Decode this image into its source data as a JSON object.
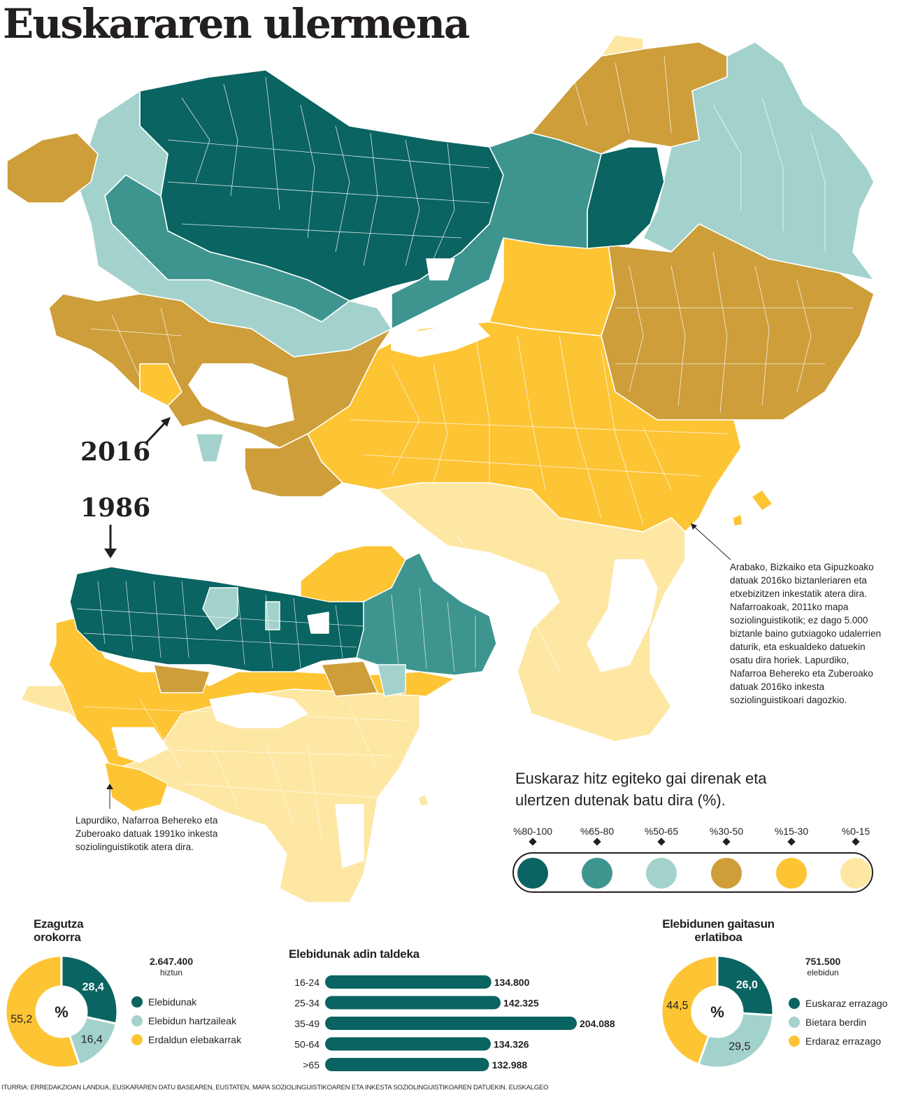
{
  "title": "Euskararen ulermena",
  "map_2016": {
    "year_label": "2016",
    "note": "Arabako, Bizkaiko eta Gipuzkoako datuak 2016ko biztanleriaren eta etxebizitzen inkestatik atera dira. Nafarroakoak, 2011ko mapa soziolinguistikotik; ez dago 5.000 biztanle baino gutxiagoko udalerrien daturik, eta eskualdeko datuekin osatu dira horiek. Lapurdiko, Nafarroa Behereko eta Zuberoako datuak 2016ko inkesta soziolinguistikoari dagozkio."
  },
  "map_1986": {
    "year_label": "1986",
    "note": "Lapurdiko, Nafarroa Behereko eta Zuberoako datuak 1991ko inkesta soziolinguistikotik atera dira."
  },
  "legend": {
    "intro": "Euskaraz hitz egiteko gai direnak eta ulertzen dutenak batu dira (%).",
    "classes": [
      {
        "label": "%80-100",
        "color": "#0a6461"
      },
      {
        "label": "%65-80",
        "color": "#3e958f"
      },
      {
        "label": "%50-65",
        "color": "#a3d2cc"
      },
      {
        "label": "%30-50",
        "color": "#cd9e3a"
      },
      {
        "label": "%15-30",
        "color": "#fdc434"
      },
      {
        "label": "%0-15",
        "color": "#fde7a2"
      }
    ]
  },
  "chart_data": [
    {
      "type": "pie",
      "title": "Ezagutza orokorra",
      "total_value": "2.647.400",
      "total_unit": "hiztun",
      "center_label": "%",
      "slices": [
        {
          "name": "Elebidunak",
          "value": 28.4,
          "label": "28,4",
          "color": "#0a6461"
        },
        {
          "name": "Elebidun hartzaileak",
          "value": 16.4,
          "label": "16,4",
          "color": "#a3d2cc"
        },
        {
          "name": "Erdaldun elebakarrak",
          "value": 55.2,
          "label": "55,2",
          "color": "#fdc434"
        }
      ]
    },
    {
      "type": "bar",
      "title": "Elebidunak adin taldeka",
      "categories": [
        "16-24",
        "25-34",
        "35-49",
        "50-64",
        ">65"
      ],
      "values": [
        134800,
        142325,
        204088,
        134326,
        132988
      ],
      "value_labels": [
        "134.800",
        "142.325",
        "204.088",
        "134.326",
        "132.988"
      ],
      "color": "#0a6461"
    },
    {
      "type": "pie",
      "title": "Elebidunen gaitasun erlatiboa",
      "total_value": "751.500",
      "total_unit": "elebidun",
      "center_label": "%",
      "slices": [
        {
          "name": "Euskaraz errazago",
          "value": 26.0,
          "label": "26,0",
          "color": "#0a6461"
        },
        {
          "name": "Bietara berdin",
          "value": 29.5,
          "label": "29,5",
          "color": "#a3d2cc"
        },
        {
          "name": "Erdaraz errazago",
          "value": 44.5,
          "label": "44,5",
          "color": "#fdc434"
        }
      ]
    }
  ],
  "footer": "ITURRIA: ERREDAKZIOAN LANDUA, EUSKARAREN DATU BASEAREN, EUSTATEN, MAPA SOZIOLINGUISTIKOAREN ETA INKESTA SOZIOLINGUISTIKOAREN DATUEKIN. EUSKALGEO"
}
